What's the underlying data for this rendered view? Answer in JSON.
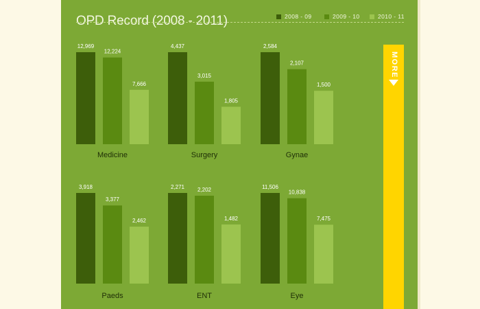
{
  "title": "OPD Record (2008 - 2011)",
  "more_label": "MORE",
  "icons": {
    "more": "down-triangle-icon"
  },
  "colors": {
    "panel": "#7da935",
    "series": [
      "#3d5e0a",
      "#5a8a11",
      "#9cc44f"
    ],
    "more": "#ffd500",
    "page": "#fdf9e6"
  },
  "chart_data": {
    "type": "bar",
    "title": "OPD Record (2008 - 2011)",
    "legend_position": "top-right",
    "grid": false,
    "series_names": [
      "2008 - 09",
      "2009 - 10",
      "2010 - 11"
    ],
    "panels": [
      {
        "category": "Medicine",
        "values": [
          12969,
          12224,
          7666
        ],
        "labels": [
          "12,969",
          "12,224",
          "7,666"
        ]
      },
      {
        "category": "Surgery",
        "values": [
          4437,
          3015,
          1805
        ],
        "labels": [
          "4,437",
          "3,015",
          "1,805"
        ]
      },
      {
        "category": "Gynae",
        "values": [
          2584,
          2107,
          1500
        ],
        "labels": [
          "2,584",
          "2,107",
          "1,500"
        ]
      },
      {
        "category": "Paeds",
        "values": [
          3918,
          3377,
          2462
        ],
        "labels": [
          "3,918",
          "3,377",
          "2,462"
        ]
      },
      {
        "category": "ENT",
        "values": [
          2271,
          2202,
          1482
        ],
        "labels": [
          "2,271",
          "2,202",
          "1,482"
        ]
      },
      {
        "category": "Eye",
        "values": [
          11506,
          10838,
          7475
        ],
        "labels": [
          "11,506",
          "10,838",
          "7,475"
        ]
      }
    ]
  }
}
